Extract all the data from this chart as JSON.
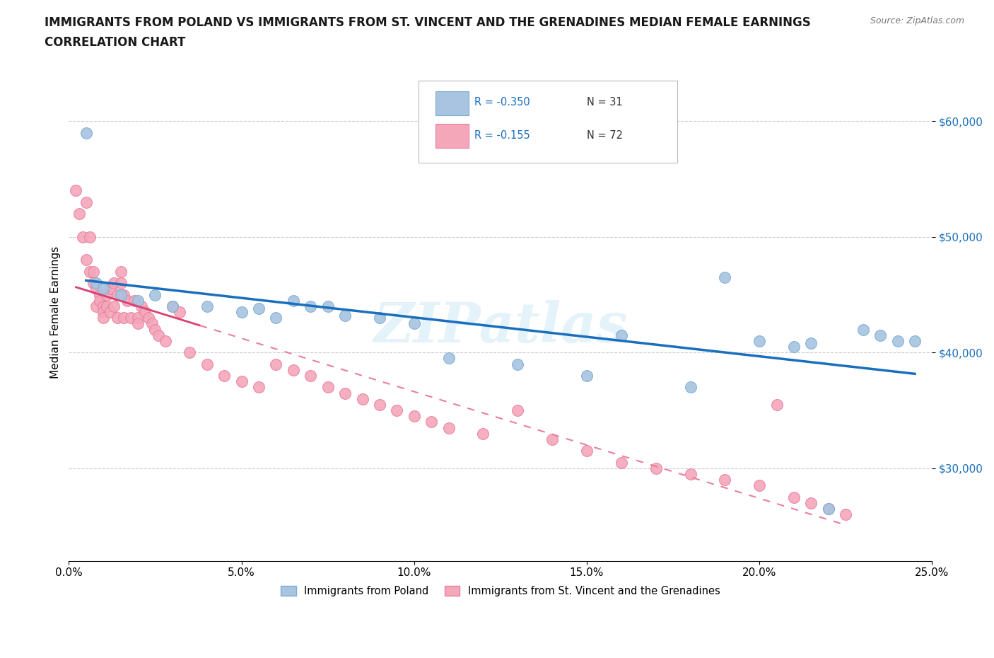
{
  "title_line1": "IMMIGRANTS FROM POLAND VS IMMIGRANTS FROM ST. VINCENT AND THE GRENADINES MEDIAN FEMALE EARNINGS",
  "title_line2": "CORRELATION CHART",
  "source_text": "Source: ZipAtlas.com",
  "ylabel": "Median Female Earnings",
  "xlim": [
    0.0,
    0.25
  ],
  "ylim": [
    22000,
    65000
  ],
  "xtick_labels": [
    "0.0%",
    "5.0%",
    "10.0%",
    "15.0%",
    "20.0%",
    "25.0%"
  ],
  "xtick_vals": [
    0.0,
    0.05,
    0.1,
    0.15,
    0.2,
    0.25
  ],
  "ytick_vals": [
    30000,
    40000,
    50000,
    60000
  ],
  "ytick_labels": [
    "$30,000",
    "$40,000",
    "$50,000",
    "$60,000"
  ],
  "legend_r1": "R = -0.350",
  "legend_n1": "N = 31",
  "legend_r2": "R = -0.155",
  "legend_n2": "N = 72",
  "color_poland": "#a8c4e0",
  "color_svg": "#f4a7b9",
  "color_poland_edge": "#7aadd4",
  "color_svg_edge": "#e87fa0",
  "color_poland_line": "#1a6fbd",
  "color_svg_line": "#d94070",
  "color_legend_r": "#1a6fbd",
  "background_color": "#ffffff",
  "grid_color": "#cccccc",
  "watermark": "ZIPatlas",
  "poland_scatter_x": [
    0.005,
    0.008,
    0.01,
    0.015,
    0.02,
    0.025,
    0.03,
    0.04,
    0.05,
    0.055,
    0.06,
    0.065,
    0.07,
    0.075,
    0.08,
    0.09,
    0.1,
    0.11,
    0.13,
    0.15,
    0.16,
    0.18,
    0.19,
    0.2,
    0.21,
    0.215,
    0.22,
    0.23,
    0.235,
    0.24,
    0.245
  ],
  "poland_scatter_y": [
    59000,
    46000,
    45500,
    45000,
    44500,
    45000,
    44000,
    44000,
    43500,
    43800,
    43000,
    44500,
    44000,
    44000,
    43200,
    43000,
    42500,
    39500,
    39000,
    38000,
    41500,
    37000,
    46500,
    41000,
    40500,
    40800,
    26500,
    42000,
    41500,
    41000,
    41000
  ],
  "svgr_scatter_x": [
    0.002,
    0.003,
    0.004,
    0.005,
    0.005,
    0.006,
    0.006,
    0.007,
    0.007,
    0.008,
    0.008,
    0.009,
    0.009,
    0.01,
    0.01,
    0.01,
    0.011,
    0.011,
    0.012,
    0.012,
    0.013,
    0.013,
    0.014,
    0.014,
    0.015,
    0.015,
    0.016,
    0.016,
    0.017,
    0.018,
    0.019,
    0.02,
    0.02,
    0.021,
    0.022,
    0.023,
    0.024,
    0.025,
    0.026,
    0.028,
    0.03,
    0.032,
    0.035,
    0.04,
    0.045,
    0.05,
    0.055,
    0.06,
    0.065,
    0.07,
    0.075,
    0.08,
    0.085,
    0.09,
    0.095,
    0.1,
    0.105,
    0.11,
    0.12,
    0.13,
    0.14,
    0.15,
    0.16,
    0.17,
    0.18,
    0.19,
    0.2,
    0.205,
    0.21,
    0.215,
    0.22,
    0.225
  ],
  "svgr_scatter_y": [
    54000,
    52000,
    50000,
    48000,
    53000,
    47000,
    50000,
    47000,
    46000,
    45500,
    44000,
    45000,
    44500,
    44000,
    43500,
    43000,
    45000,
    44000,
    45500,
    43500,
    46000,
    44000,
    45000,
    43000,
    47000,
    46000,
    45000,
    43000,
    44500,
    43000,
    44500,
    43000,
    42500,
    44000,
    43500,
    43000,
    42500,
    42000,
    41500,
    41000,
    44000,
    43500,
    40000,
    39000,
    38000,
    37500,
    37000,
    39000,
    38500,
    38000,
    37000,
    36500,
    36000,
    35500,
    35000,
    34500,
    34000,
    33500,
    33000,
    35000,
    32500,
    31500,
    30500,
    30000,
    29500,
    29000,
    28500,
    35500,
    27500,
    27000,
    26500,
    26000
  ],
  "title_fontsize": 12,
  "axis_fontsize": 11,
  "tick_fontsize": 11
}
